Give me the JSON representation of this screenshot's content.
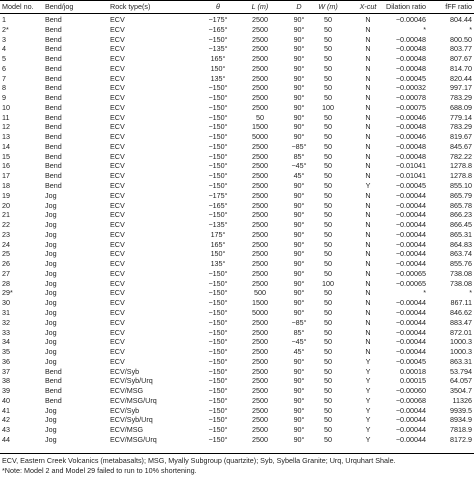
{
  "headers": [
    "Model no.",
    "Bend/jog",
    "Rock type(s)",
    "θ",
    "L (m)",
    "D",
    "W (m)",
    "X-cut",
    "Dilation ratio",
    "fFF ratio"
  ],
  "rows": [
    [
      "1",
      "Bend",
      "ECV",
      "−175°",
      "2500",
      "90°",
      "50",
      "N",
      "−0.00046",
      "804.44"
    ],
    [
      "2*",
      "Bend",
      "ECV",
      "−165°",
      "2500",
      "90°",
      "50",
      "N",
      "*",
      "*"
    ],
    [
      "3",
      "Bend",
      "ECV",
      "−150°",
      "2500",
      "90°",
      "50",
      "N",
      "−0.00048",
      "800.50"
    ],
    [
      "4",
      "Bend",
      "ECV",
      "−135°",
      "2500",
      "90°",
      "50",
      "N",
      "−0.00048",
      "803.77"
    ],
    [
      "5",
      "Bend",
      "ECV",
      "165°",
      "2500",
      "90°",
      "50",
      "N",
      "−0.00048",
      "807.67"
    ],
    [
      "6",
      "Bend",
      "ECV",
      "150°",
      "2500",
      "90°",
      "50",
      "N",
      "−0.00048",
      "814.70"
    ],
    [
      "7",
      "Bend",
      "ECV",
      "135°",
      "2500",
      "90°",
      "50",
      "N",
      "−0.00045",
      "820.44"
    ],
    [
      "8",
      "Bend",
      "ECV",
      "−150°",
      "2500",
      "90°",
      "50",
      "N",
      "−0.00032",
      "997.17"
    ],
    [
      "9",
      "Bend",
      "ECV",
      "−150°",
      "2500",
      "90°",
      "50",
      "N",
      "−0.00078",
      "783.29"
    ],
    [
      "10",
      "Bend",
      "ECV",
      "−150°",
      "2500",
      "90°",
      "100",
      "N",
      "−0.00075",
      "688.09"
    ],
    [
      "11",
      "Bend",
      "ECV",
      "−150°",
      "50",
      "90°",
      "50",
      "N",
      "−0.00046",
      "779.14"
    ],
    [
      "12",
      "Bend",
      "ECV",
      "−150°",
      "1500",
      "90°",
      "50",
      "N",
      "−0.00048",
      "783.29"
    ],
    [
      "13",
      "Bend",
      "ECV",
      "−150°",
      "5000",
      "90°",
      "50",
      "N",
      "−0.00046",
      "819.67"
    ],
    [
      "14",
      "Bend",
      "ECV",
      "−150°",
      "2500",
      "−85°",
      "50",
      "N",
      "−0.00048",
      "845.67"
    ],
    [
      "15",
      "Bend",
      "ECV",
      "−150°",
      "2500",
      "85°",
      "50",
      "N",
      "−0.00048",
      "782.22"
    ],
    [
      "16",
      "Bend",
      "ECV",
      "−150°",
      "2500",
      "−45°",
      "50",
      "N",
      "−0.01041",
      "1278.8"
    ],
    [
      "17",
      "Bend",
      "ECV",
      "−150°",
      "2500",
      "45°",
      "50",
      "N",
      "−0.01041",
      "1278.8"
    ],
    [
      "18",
      "Bend",
      "ECV",
      "−150°",
      "2500",
      "90°",
      "50",
      "Y",
      "−0.00045",
      "855.10"
    ],
    [
      "19",
      "Jog",
      "ECV",
      "−175°",
      "2500",
      "90°",
      "50",
      "N",
      "−0.00044",
      "865.79"
    ],
    [
      "20",
      "Jog",
      "ECV",
      "−165°",
      "2500",
      "90°",
      "50",
      "N",
      "−0.00044",
      "865.78"
    ],
    [
      "21",
      "Jog",
      "ECV",
      "−150°",
      "2500",
      "90°",
      "50",
      "N",
      "−0.00044",
      "866.23"
    ],
    [
      "22",
      "Jog",
      "ECV",
      "−135°",
      "2500",
      "90°",
      "50",
      "N",
      "−0.00044",
      "866.45"
    ],
    [
      "23",
      "Jog",
      "ECV",
      "175°",
      "2500",
      "90°",
      "50",
      "N",
      "−0.00044",
      "865.31"
    ],
    [
      "24",
      "Jog",
      "ECV",
      "165°",
      "2500",
      "90°",
      "50",
      "N",
      "−0.00044",
      "864.83"
    ],
    [
      "25",
      "Jog",
      "ECV",
      "150°",
      "2500",
      "90°",
      "50",
      "N",
      "−0.00044",
      "863.74"
    ],
    [
      "26",
      "Jog",
      "ECV",
      "135°",
      "2500",
      "90°",
      "50",
      "N",
      "−0.00044",
      "855.76"
    ],
    [
      "27",
      "Jog",
      "ECV",
      "−150°",
      "2500",
      "90°",
      "50",
      "N",
      "−0.00065",
      "738.08"
    ],
    [
      "28",
      "Jog",
      "ECV",
      "−150°",
      "2500",
      "90°",
      "100",
      "N",
      "−0.00065",
      "738.08"
    ],
    [
      "29*",
      "Jog",
      "ECV",
      "−150°",
      "500",
      "90°",
      "50",
      "N",
      "*",
      "*"
    ],
    [
      "30",
      "Jog",
      "ECV",
      "−150°",
      "1500",
      "90°",
      "50",
      "N",
      "−0.00044",
      "867.11"
    ],
    [
      "31",
      "Jog",
      "ECV",
      "−150°",
      "5000",
      "90°",
      "50",
      "N",
      "−0.00044",
      "846.62"
    ],
    [
      "32",
      "Jog",
      "ECV",
      "−150°",
      "2500",
      "−85°",
      "50",
      "N",
      "−0.00044",
      "883.47"
    ],
    [
      "33",
      "Jog",
      "ECV",
      "−150°",
      "2500",
      "85°",
      "50",
      "N",
      "−0.00044",
      "872.01"
    ],
    [
      "34",
      "Jog",
      "ECV",
      "−150°",
      "2500",
      "−45°",
      "50",
      "N",
      "−0.00044",
      "1000.3"
    ],
    [
      "35",
      "Jog",
      "ECV",
      "−150°",
      "2500",
      "45°",
      "50",
      "N",
      "−0.00044",
      "1000.3"
    ],
    [
      "36",
      "Jog",
      "ECV",
      "−150°",
      "2500",
      "90°",
      "50",
      "Y",
      "−0.00045",
      "863.31"
    ],
    [
      "37",
      "Bend",
      "ECV/Syb",
      "−150°",
      "2500",
      "90°",
      "50",
      "Y",
      "0.00018",
      "53.794"
    ],
    [
      "38",
      "Bend",
      "ECV/Syb/Urq",
      "−150°",
      "2500",
      "90°",
      "50",
      "Y",
      "0.00015",
      "64.057"
    ],
    [
      "39",
      "Bend",
      "ECV/MSG",
      "−150°",
      "2500",
      "90°",
      "50",
      "Y",
      "−0.00060",
      "3504.7"
    ],
    [
      "40",
      "Bend",
      "ECV/MSG/Urq",
      "−150°",
      "2500",
      "90°",
      "50",
      "Y",
      "−0.00068",
      "11326"
    ],
    [
      "41",
      "Jog",
      "ECV/Syb",
      "−150°",
      "2500",
      "90°",
      "50",
      "Y",
      "−0.00044",
      "9939.5"
    ],
    [
      "42",
      "Jog",
      "ECV/Syb/Urq",
      "−150°",
      "2500",
      "90°",
      "50",
      "Y",
      "−0.00044",
      "8934.9"
    ],
    [
      "43",
      "Jog",
      "ECV/MSG",
      "−150°",
      "2500",
      "90°",
      "50",
      "Y",
      "−0.00044",
      "7818.9"
    ],
    [
      "44",
      "Jog",
      "ECV/MSG/Urq",
      "−150°",
      "2500",
      "90°",
      "50",
      "Y",
      "−0.00044",
      "8172.9"
    ]
  ],
  "footnotes": [
    "ECV, Eastern Creek Volcanics (metabasalts); MSG, Myally Subgroup (quartzite); Syb, Sybella Granite; Urq, Urquhart Shale.",
    "*Note: Model 2 and Model 29 failed to run to 10% shortening."
  ]
}
